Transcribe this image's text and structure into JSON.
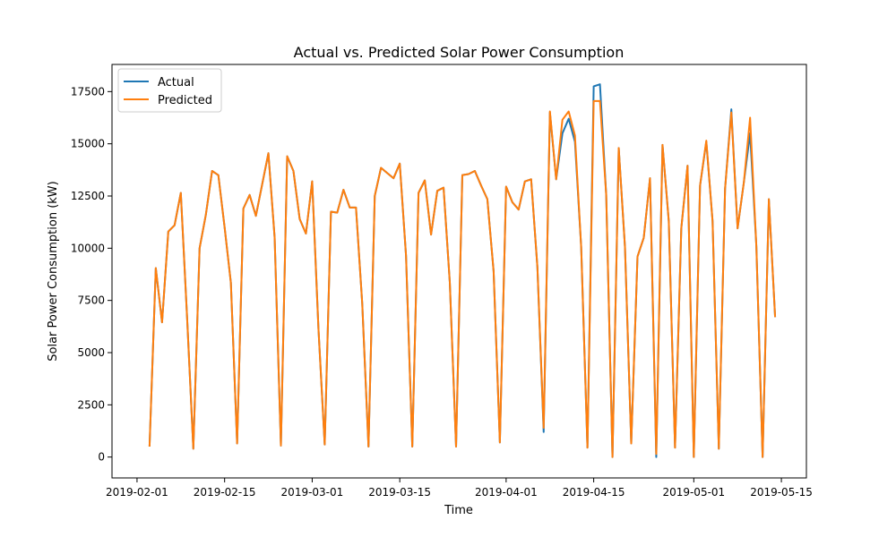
{
  "chart_data": {
    "type": "line",
    "title": "Actual vs. Predicted Solar Power Consumption",
    "xlabel": "Time",
    "ylabel": "Solar Power Consumption (kW)",
    "xlim": [
      "2019-01-28",
      "2019-05-19"
    ],
    "ylim": [
      -1000,
      18800
    ],
    "x_ticks": [
      "2019-02-01",
      "2019-02-15",
      "2019-03-01",
      "2019-03-15",
      "2019-04-01",
      "2019-04-15",
      "2019-05-01",
      "2019-05-15"
    ],
    "y_ticks": [
      0,
      2500,
      5000,
      7500,
      10000,
      12500,
      15000,
      17500
    ],
    "grid": false,
    "legend": "top-left",
    "x": [
      "2019-02-03",
      "2019-02-04",
      "2019-02-05",
      "2019-02-06",
      "2019-02-07",
      "2019-02-08",
      "2019-02-09",
      "2019-02-10",
      "2019-02-11",
      "2019-02-12",
      "2019-02-13",
      "2019-02-14",
      "2019-02-15",
      "2019-02-16",
      "2019-02-17",
      "2019-02-18",
      "2019-02-19",
      "2019-02-20",
      "2019-02-21",
      "2019-02-22",
      "2019-02-23",
      "2019-02-24",
      "2019-02-25",
      "2019-02-26",
      "2019-02-27",
      "2019-02-28",
      "2019-03-01",
      "2019-03-02",
      "2019-03-03",
      "2019-03-04",
      "2019-03-05",
      "2019-03-06",
      "2019-03-07",
      "2019-03-08",
      "2019-03-09",
      "2019-03-10",
      "2019-03-11",
      "2019-03-12",
      "2019-03-13",
      "2019-03-14",
      "2019-03-15",
      "2019-03-16",
      "2019-03-17",
      "2019-03-18",
      "2019-03-19",
      "2019-03-20",
      "2019-03-21",
      "2019-03-22",
      "2019-03-23",
      "2019-03-24",
      "2019-03-25",
      "2019-03-26",
      "2019-03-27",
      "2019-03-28",
      "2019-03-29",
      "2019-03-30",
      "2019-03-31",
      "2019-04-01",
      "2019-04-02",
      "2019-04-03",
      "2019-04-04",
      "2019-04-05",
      "2019-04-06",
      "2019-04-07",
      "2019-04-08",
      "2019-04-09",
      "2019-04-10",
      "2019-04-11",
      "2019-04-12",
      "2019-04-13",
      "2019-04-14",
      "2019-04-15",
      "2019-04-16",
      "2019-04-17",
      "2019-04-18",
      "2019-04-19",
      "2019-04-20",
      "2019-04-21",
      "2019-04-22",
      "2019-04-23",
      "2019-04-24",
      "2019-04-25",
      "2019-04-26",
      "2019-04-27",
      "2019-04-28",
      "2019-04-29",
      "2019-04-30",
      "2019-05-01",
      "2019-05-02",
      "2019-05-03",
      "2019-05-04",
      "2019-05-05",
      "2019-05-06",
      "2019-05-07",
      "2019-05-08",
      "2019-05-09",
      "2019-05-10",
      "2019-05-11",
      "2019-05-12",
      "2019-05-13",
      "2019-05-14"
    ],
    "series": [
      {
        "name": "Actual",
        "color": "#1f77b4",
        "values": [
          500,
          9050,
          6450,
          10800,
          11100,
          12650,
          6700,
          400,
          10000,
          11600,
          13700,
          13500,
          11000,
          8350,
          650,
          11900,
          12550,
          11550,
          13050,
          14550,
          10500,
          550,
          14400,
          13700,
          11400,
          10700,
          13200,
          6150,
          600,
          11750,
          11700,
          12800,
          11950,
          11950,
          7350,
          500,
          12500,
          13850,
          13600,
          13350,
          14050,
          9650,
          500,
          12650,
          13250,
          10650,
          12750,
          12900,
          8350,
          500,
          13500,
          13550,
          13700,
          13000,
          12350,
          8900,
          700,
          12950,
          12200,
          11850,
          13200,
          13300,
          9100,
          1200,
          16500,
          13300,
          15500,
          16200,
          15100,
          10050,
          450,
          17750,
          17850,
          12550,
          0,
          14800,
          10050,
          650,
          9600,
          10500,
          13350,
          0,
          14950,
          11300,
          450,
          10950,
          13950,
          0,
          13000,
          15100,
          11300,
          400,
          12850,
          16650,
          10950,
          13150,
          15500,
          10100,
          0,
          12350,
          6700
        ]
      },
      {
        "name": "Predicted",
        "color": "#ff7f0e",
        "values": [
          500,
          9050,
          6450,
          10800,
          11100,
          12650,
          6700,
          400,
          10000,
          11600,
          13700,
          13500,
          11000,
          8350,
          650,
          11900,
          12550,
          11550,
          13050,
          14550,
          10500,
          550,
          14400,
          13700,
          11400,
          10700,
          13200,
          6150,
          600,
          11750,
          11700,
          12800,
          11950,
          11950,
          7350,
          500,
          12500,
          13850,
          13600,
          13350,
          14050,
          9650,
          500,
          12650,
          13250,
          10650,
          12750,
          12900,
          8350,
          500,
          13500,
          13550,
          13700,
          13000,
          12350,
          8900,
          700,
          12950,
          12200,
          11850,
          13200,
          13300,
          9100,
          1400,
          16550,
          13300,
          16150,
          16550,
          15400,
          10050,
          450,
          17050,
          17050,
          12550,
          0,
          14800,
          10050,
          650,
          9600,
          10500,
          13350,
          150,
          14950,
          11300,
          450,
          10950,
          13950,
          0,
          13000,
          15150,
          11300,
          400,
          12850,
          16500,
          10950,
          13150,
          16250,
          10100,
          0,
          12350,
          6700
        ]
      }
    ]
  }
}
